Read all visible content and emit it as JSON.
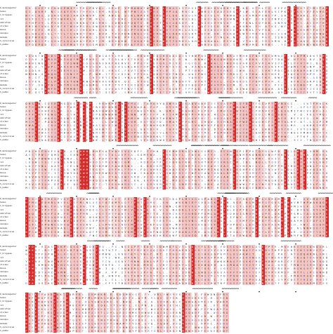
{
  "figure": {
    "sequence_names": [
      "ss",
      "D_melanogaster",
      "human",
      "C_briggsae",
      "rat",
      "zebrafish",
      "chicken",
      "mouse",
      "xenopus",
      "medaka",
      "S_cerevisiae",
      "S_pombe"
    ],
    "colors": {
      "conserved": "#d42a2a",
      "similar": "#f6c5c0",
      "faint": "#f9dcd8",
      "text_dark": "#2b2b2b",
      "text_blue": "#4a5fa8",
      "ss_bar": "#333333"
    },
    "blocks": [
      {
        "rows": 12,
        "residues": 95
      },
      {
        "rows": 12,
        "residues": 95
      },
      {
        "rows": 12,
        "residues": 95
      },
      {
        "rows": 12,
        "residues": 95
      },
      {
        "rows": 12,
        "residues": 95
      },
      {
        "rows": 12,
        "residues": 95
      },
      {
        "rows": 12,
        "residues": 65
      }
    ]
  }
}
